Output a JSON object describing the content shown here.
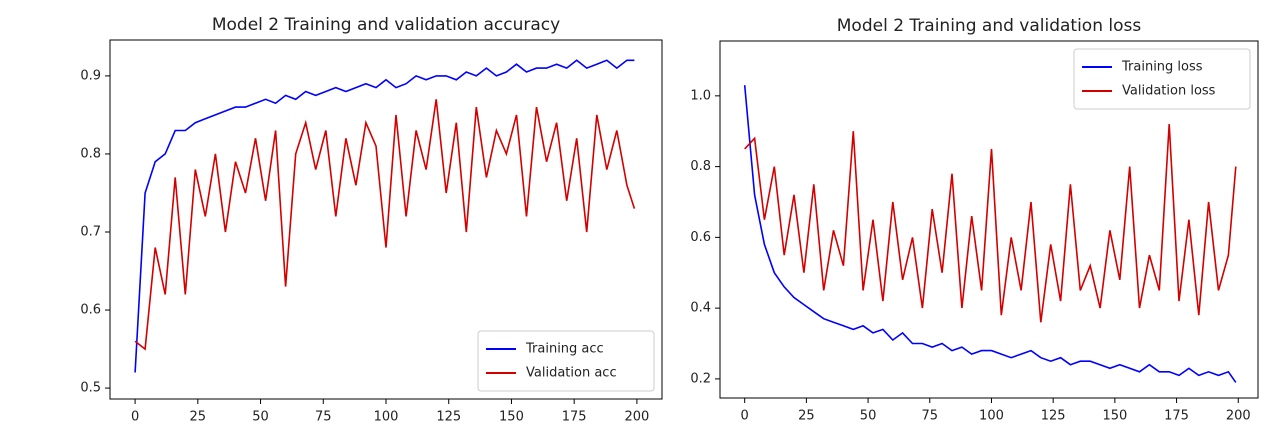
{
  "chart_data": [
    {
      "type": "line",
      "title": "Model 2 Training and validation accuracy",
      "x": [
        0,
        4,
        8,
        12,
        16,
        20,
        24,
        28,
        32,
        36,
        40,
        44,
        48,
        52,
        56,
        60,
        64,
        68,
        72,
        76,
        80,
        84,
        88,
        92,
        96,
        100,
        104,
        108,
        112,
        116,
        120,
        124,
        128,
        132,
        136,
        140,
        144,
        148,
        152,
        156,
        160,
        164,
        168,
        172,
        176,
        180,
        184,
        188,
        192,
        196,
        199
      ],
      "series": [
        {
          "name": "Training acc",
          "color": "#0000ff",
          "values": [
            0.52,
            0.75,
            0.79,
            0.8,
            0.83,
            0.83,
            0.84,
            0.845,
            0.85,
            0.855,
            0.86,
            0.86,
            0.865,
            0.87,
            0.865,
            0.875,
            0.87,
            0.88,
            0.875,
            0.88,
            0.885,
            0.88,
            0.885,
            0.89,
            0.885,
            0.895,
            0.885,
            0.89,
            0.9,
            0.895,
            0.9,
            0.9,
            0.895,
            0.905,
            0.9,
            0.91,
            0.9,
            0.905,
            0.915,
            0.905,
            0.91,
            0.91,
            0.915,
            0.91,
            0.92,
            0.91,
            0.915,
            0.92,
            0.91,
            0.92,
            0.92
          ]
        },
        {
          "name": "Validation acc",
          "color": "#d40000",
          "values": [
            0.56,
            0.55,
            0.68,
            0.62,
            0.77,
            0.62,
            0.78,
            0.72,
            0.8,
            0.7,
            0.79,
            0.75,
            0.82,
            0.74,
            0.83,
            0.63,
            0.8,
            0.84,
            0.78,
            0.83,
            0.72,
            0.82,
            0.76,
            0.84,
            0.81,
            0.68,
            0.85,
            0.72,
            0.83,
            0.78,
            0.87,
            0.75,
            0.84,
            0.7,
            0.86,
            0.77,
            0.83,
            0.8,
            0.85,
            0.72,
            0.86,
            0.79,
            0.84,
            0.74,
            0.82,
            0.7,
            0.85,
            0.78,
            0.83,
            0.76,
            0.73
          ]
        }
      ],
      "xlim": [
        -10,
        210
      ],
      "xticks": [
        0,
        25,
        50,
        75,
        100,
        125,
        150,
        175,
        200
      ],
      "ylim": [
        0.486,
        0.946
      ],
      "yticks": [
        0.5,
        0.6,
        0.7,
        0.8,
        0.9
      ],
      "legend": "lower right"
    },
    {
      "type": "line",
      "title": "Model 2 Training and validation loss",
      "x": [
        0,
        4,
        8,
        12,
        16,
        20,
        24,
        28,
        32,
        36,
        40,
        44,
        48,
        52,
        56,
        60,
        64,
        68,
        72,
        76,
        80,
        84,
        88,
        92,
        96,
        100,
        104,
        108,
        112,
        116,
        120,
        124,
        128,
        132,
        136,
        140,
        144,
        148,
        152,
        156,
        160,
        164,
        168,
        172,
        176,
        180,
        184,
        188,
        192,
        196,
        199
      ],
      "series": [
        {
          "name": "Training loss",
          "color": "#0000ff",
          "values": [
            1.03,
            0.72,
            0.58,
            0.5,
            0.46,
            0.43,
            0.41,
            0.39,
            0.37,
            0.36,
            0.35,
            0.34,
            0.35,
            0.33,
            0.34,
            0.31,
            0.33,
            0.3,
            0.3,
            0.29,
            0.3,
            0.28,
            0.29,
            0.27,
            0.28,
            0.28,
            0.27,
            0.26,
            0.27,
            0.28,
            0.26,
            0.25,
            0.26,
            0.24,
            0.25,
            0.25,
            0.24,
            0.23,
            0.24,
            0.23,
            0.22,
            0.24,
            0.22,
            0.22,
            0.21,
            0.23,
            0.21,
            0.22,
            0.21,
            0.22,
            0.19
          ]
        },
        {
          "name": "Validation loss",
          "color": "#d40000",
          "values": [
            0.85,
            0.88,
            0.65,
            0.8,
            0.55,
            0.72,
            0.5,
            0.75,
            0.45,
            0.62,
            0.52,
            0.9,
            0.45,
            0.65,
            0.42,
            0.7,
            0.48,
            0.6,
            0.4,
            0.68,
            0.5,
            0.78,
            0.4,
            0.66,
            0.45,
            0.85,
            0.38,
            0.6,
            0.45,
            0.7,
            0.36,
            0.58,
            0.42,
            0.75,
            0.45,
            0.52,
            0.4,
            0.62,
            0.48,
            0.8,
            0.4,
            0.55,
            0.45,
            0.92,
            0.42,
            0.65,
            0.38,
            0.7,
            0.45,
            0.55,
            0.8
          ]
        }
      ],
      "xlim": [
        -10,
        208
      ],
      "xticks": [
        0,
        25,
        50,
        75,
        100,
        125,
        150,
        175,
        200
      ],
      "ylim": [
        0.146,
        1.155
      ],
      "yticks": [
        0.2,
        0.4,
        0.6,
        0.8,
        {
          "value": 1,
          "label": "1.0"
        }
      ],
      "legend": "upper right"
    }
  ]
}
